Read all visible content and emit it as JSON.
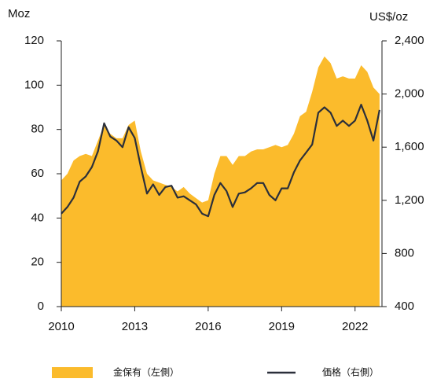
{
  "chart_data": {
    "type": "area",
    "y_label": "Moz",
    "y2_label": "US$/oz",
    "x": [
      2010.0,
      2010.25,
      2010.5,
      2010.75,
      2011.0,
      2011.25,
      2011.5,
      2011.75,
      2012.0,
      2012.25,
      2012.5,
      2012.75,
      2013.0,
      2013.25,
      2013.5,
      2013.75,
      2014.0,
      2014.25,
      2014.5,
      2014.75,
      2015.0,
      2015.25,
      2015.5,
      2015.75,
      2016.0,
      2016.25,
      2016.5,
      2016.75,
      2017.0,
      2017.25,
      2017.5,
      2017.75,
      2018.0,
      2018.25,
      2018.5,
      2018.75,
      2019.0,
      2019.25,
      2019.5,
      2019.75,
      2020.0,
      2020.25,
      2020.5,
      2020.75,
      2021.0,
      2021.25,
      2021.5,
      2021.75,
      2022.0,
      2022.25,
      2022.5,
      2022.75,
      2023.0
    ],
    "series": [
      {
        "name": "金保有（左側）",
        "type": "area",
        "color": "#fbbb2c",
        "axis": "y",
        "values": [
          57,
          60,
          66,
          68,
          69,
          68,
          75,
          82,
          78,
          76,
          76,
          82,
          84,
          70,
          60,
          57,
          56,
          55,
          54,
          52,
          54,
          51,
          49,
          47,
          48,
          60,
          68,
          68,
          64,
          68,
          68,
          70,
          71,
          71,
          72,
          73,
          72,
          73,
          78,
          86,
          88,
          97,
          108,
          113,
          110,
          103,
          104,
          103,
          103,
          109,
          106,
          99,
          96
        ]
      },
      {
        "name": "価格（右側）",
        "type": "line",
        "color": "#2b2f3a",
        "axis": "y2",
        "values": [
          1100,
          1150,
          1220,
          1340,
          1380,
          1450,
          1570,
          1780,
          1680,
          1650,
          1600,
          1750,
          1670,
          1450,
          1250,
          1320,
          1240,
          1300,
          1310,
          1220,
          1230,
          1200,
          1170,
          1100,
          1080,
          1240,
          1330,
          1270,
          1150,
          1250,
          1260,
          1290,
          1330,
          1330,
          1240,
          1200,
          1290,
          1290,
          1410,
          1500,
          1560,
          1620,
          1860,
          1900,
          1860,
          1760,
          1800,
          1760,
          1800,
          1920,
          1800,
          1650,
          1880
        ]
      }
    ],
    "xlim": [
      2010,
      2023.1
    ],
    "xticks": [
      2010,
      2013,
      2016,
      2019,
      2022
    ],
    "ylim": [
      0,
      120
    ],
    "yticks": [
      0,
      20,
      40,
      60,
      80,
      100,
      120
    ],
    "y2lim": [
      400,
      2400
    ],
    "y2ticks": [
      400,
      800,
      {
        "value": 1200,
        "label": "1,200"
      },
      {
        "value": 1600,
        "label": "1,600"
      },
      {
        "value": 2000,
        "label": "2,000"
      },
      {
        "value": 2400,
        "label": "2,400"
      }
    ],
    "legend": "bottom"
  }
}
